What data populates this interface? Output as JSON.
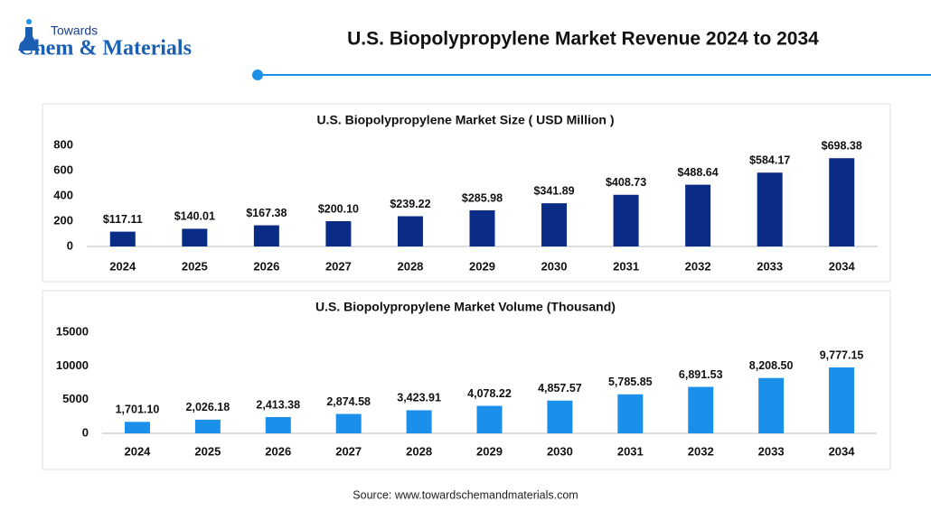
{
  "header": {
    "logo_small": "Towards",
    "logo_main": "Chem & Materials",
    "title": "U.S. Biopolypropylene Market Revenue 2024 to 2034"
  },
  "chart_data": [
    {
      "type": "bar",
      "title": "U.S. Biopolypropylene Market Size ( USD Million )",
      "categories": [
        "2024",
        "2025",
        "2026",
        "2027",
        "2028",
        "2029",
        "2030",
        "2031",
        "2032",
        "2033",
        "2034"
      ],
      "values": [
        117.11,
        140.01,
        167.38,
        200.1,
        239.22,
        285.98,
        341.89,
        408.73,
        488.64,
        584.17,
        698.38
      ],
      "value_labels": [
        "$117.11",
        "$140.01",
        "$167.38",
        "$200.10",
        "$239.22",
        "$285.98",
        "$341.89",
        "$408.73",
        "$488.64",
        "$584.17",
        "$698.38"
      ],
      "color": "#0b2c86",
      "ylim": [
        0,
        800
      ],
      "yticks": [
        0,
        200,
        400,
        600,
        800
      ],
      "grid": false
    },
    {
      "type": "bar",
      "title": "U.S. Biopolypropylene Market Volume (Thousand)",
      "categories": [
        "2024",
        "2025",
        "2026",
        "2027",
        "2028",
        "2029",
        "2030",
        "2031",
        "2032",
        "2033",
        "2034"
      ],
      "values": [
        1701.1,
        2026.18,
        2413.38,
        2874.58,
        3423.91,
        4078.22,
        4857.57,
        5785.85,
        6891.53,
        8208.5,
        9777.15
      ],
      "value_labels": [
        "1,701.10",
        "2,026.18",
        "2,413.38",
        "2,874.58",
        "3,423.91",
        "4,078.22",
        "4,857.57",
        "5,785.85",
        "6,891.53",
        "8,208.50",
        "9,777.15"
      ],
      "color": "#1a90ea",
      "ylim": [
        0,
        15000
      ],
      "yticks": [
        0,
        5000,
        10000,
        15000
      ],
      "grid": false
    }
  ],
  "source": "Source: www.towardschemandmaterials.com"
}
